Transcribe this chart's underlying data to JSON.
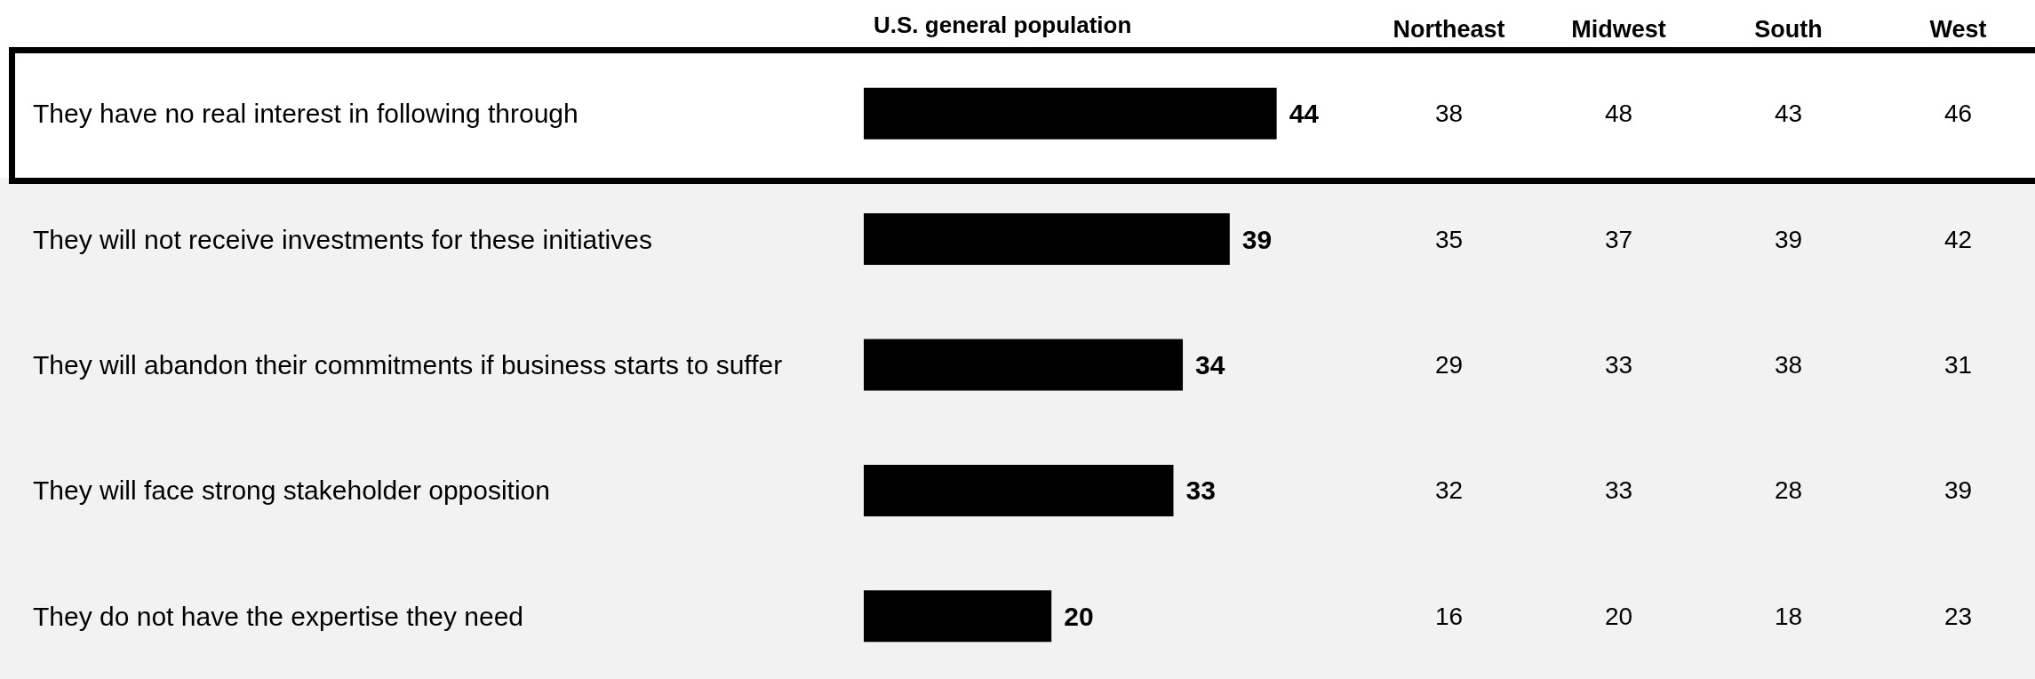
{
  "chart_data": [
    {
      "type": "bar",
      "orientation": "horizontal",
      "title": "U.S. general population",
      "categories": [
        "They have no real interest in following through",
        "They will not receive investments for these initiatives",
        "They will abandon their commitments if business starts to suffer",
        "They will face strong stakeholder opposition",
        "They do not have the expertise they need"
      ],
      "values": [
        44,
        39,
        34,
        33,
        20
      ],
      "color": "#000000",
      "data_labels": true
    },
    {
      "type": "other",
      "title": "Northeast",
      "values": [
        38,
        35,
        29,
        32,
        16
      ],
      "data_labels": true
    },
    {
      "type": "other",
      "title": "Midwest",
      "values": [
        48,
        37,
        33,
        33,
        20
      ],
      "data_labels": true
    },
    {
      "type": "other",
      "title": "South",
      "values": [
        43,
        39,
        38,
        28,
        18
      ],
      "data_labels": true
    },
    {
      "type": "other",
      "title": "West",
      "values": [
        46,
        42,
        31,
        39,
        23
      ],
      "data_labels": true
    }
  ]
}
